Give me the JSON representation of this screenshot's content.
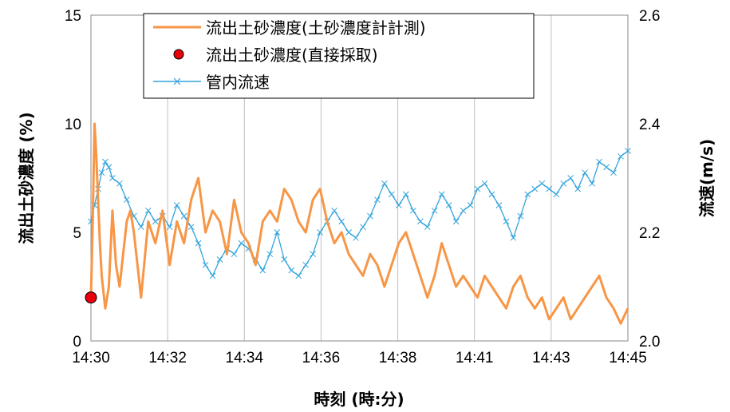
{
  "chart_data": {
    "type": "line",
    "xlabel": "時刻 (時:分)",
    "ylabel_left": "流出土砂濃度 (%)",
    "ylabel_right": "流速(m/s)",
    "x_categories": [
      "14:30",
      "14:32",
      "14:34",
      "14:36",
      "14:38",
      "14:41",
      "14:43",
      "14:45"
    ],
    "ylim_left": [
      0,
      15
    ],
    "yticks_left": [
      "0",
      "5",
      "10",
      "15"
    ],
    "ylim_right": [
      2.0,
      2.6
    ],
    "yticks_right": [
      "2.0",
      "2.2",
      "2.4",
      "2.6"
    ],
    "grid": "vertical",
    "legend_position": "top",
    "series": [
      {
        "name": "流出土砂濃度(土砂濃度計計測)",
        "axis": "left",
        "color": "#F79646",
        "marker": "none",
        "x": [
          0,
          0.05,
          0.1,
          0.15,
          0.2,
          0.25,
          0.3,
          0.4,
          0.5,
          0.6,
          0.7,
          0.8,
          0.9,
          1.0,
          1.1,
          1.2,
          1.3,
          1.4,
          1.6,
          1.8,
          2.0,
          2.2,
          2.4,
          2.6,
          2.8,
          3.0,
          3.2,
          3.4,
          3.6,
          3.8,
          4.0,
          4.2,
          4.4,
          4.6,
          4.8,
          5.0,
          5.2,
          5.4,
          5.6,
          5.8,
          6.0,
          6.2,
          6.4,
          6.6,
          6.8,
          7.0,
          7.2,
          7.4,
          7.6,
          7.8,
          8.0,
          8.2,
          8.4,
          8.6,
          8.8,
          9.0,
          9.2,
          9.4,
          9.6,
          9.8,
          10.0,
          10.2,
          10.4,
          10.6,
          10.8,
          11.0,
          11.2,
          11.4,
          11.6,
          11.8,
          12.0,
          12.2,
          12.4,
          12.6,
          12.8,
          13.0,
          13.2,
          13.4,
          13.6,
          13.8,
          14.0,
          14.2,
          14.4,
          14.6,
          14.8,
          15.0
        ],
        "y": [
          2.0,
          5.5,
          10.0,
          8.5,
          6.5,
          4.5,
          3.0,
          1.5,
          2.5,
          6.0,
          3.5,
          2.5,
          4.0,
          5.5,
          6.0,
          5.0,
          3.5,
          2.0,
          5.5,
          4.5,
          6.0,
          3.5,
          5.5,
          4.5,
          6.5,
          7.5,
          5.0,
          6.0,
          5.5,
          4.0,
          6.5,
          5.0,
          4.5,
          3.5,
          5.5,
          6.0,
          5.5,
          7.0,
          6.5,
          5.5,
          5.0,
          6.5,
          7.0,
          5.5,
          4.5,
          5.0,
          4.0,
          3.5,
          3.0,
          4.0,
          3.5,
          2.5,
          3.5,
          4.5,
          5.0,
          4.0,
          3.0,
          2.0,
          3.0,
          4.5,
          3.5,
          2.5,
          3.0,
          2.5,
          2.0,
          3.0,
          2.5,
          2.0,
          1.5,
          2.5,
          3.0,
          2.0,
          1.5,
          2.0,
          1.0,
          1.5,
          2.0,
          1.0,
          1.5,
          2.0,
          2.5,
          3.0,
          2.0,
          1.5,
          0.8,
          1.5
        ]
      },
      {
        "name": "流出土砂濃度(直接採取)",
        "axis": "left",
        "color": "#E8000B",
        "marker": "circle",
        "x": [
          0
        ],
        "y": [
          2.0
        ]
      },
      {
        "name": "管内流速",
        "axis": "right",
        "color": "#33A3DC",
        "marker": "x",
        "x": [
          0,
          0.1,
          0.2,
          0.3,
          0.4,
          0.5,
          0.6,
          0.8,
          1.0,
          1.2,
          1.4,
          1.6,
          1.8,
          2.0,
          2.2,
          2.4,
          2.6,
          2.8,
          3.0,
          3.2,
          3.4,
          3.6,
          3.8,
          4.0,
          4.2,
          4.4,
          4.6,
          4.8,
          5.0,
          5.2,
          5.4,
          5.6,
          5.8,
          6.0,
          6.2,
          6.4,
          6.6,
          6.8,
          7.0,
          7.2,
          7.4,
          7.6,
          7.8,
          8.0,
          8.2,
          8.4,
          8.6,
          8.8,
          9.0,
          9.2,
          9.4,
          9.6,
          9.8,
          10.0,
          10.2,
          10.4,
          10.6,
          10.8,
          11.0,
          11.2,
          11.4,
          11.6,
          11.8,
          12.0,
          12.2,
          12.4,
          12.6,
          12.8,
          13.0,
          13.2,
          13.4,
          13.6,
          13.8,
          14.0,
          14.2,
          14.4,
          14.6,
          14.8,
          15.0
        ],
        "y": [
          2.22,
          2.25,
          2.28,
          2.31,
          2.33,
          2.32,
          2.3,
          2.29,
          2.26,
          2.23,
          2.21,
          2.24,
          2.22,
          2.23,
          2.21,
          2.25,
          2.23,
          2.21,
          2.18,
          2.14,
          2.12,
          2.15,
          2.17,
          2.16,
          2.18,
          2.17,
          2.15,
          2.13,
          2.16,
          2.2,
          2.15,
          2.13,
          2.12,
          2.14,
          2.16,
          2.2,
          2.22,
          2.24,
          2.22,
          2.2,
          2.19,
          2.21,
          2.23,
          2.26,
          2.29,
          2.27,
          2.25,
          2.27,
          2.24,
          2.22,
          2.21,
          2.24,
          2.27,
          2.25,
          2.22,
          2.24,
          2.25,
          2.28,
          2.29,
          2.27,
          2.25,
          2.22,
          2.19,
          2.23,
          2.27,
          2.28,
          2.29,
          2.28,
          2.27,
          2.29,
          2.3,
          2.28,
          2.31,
          2.29,
          2.33,
          2.32,
          2.31,
          2.34,
          2.35
        ]
      }
    ]
  }
}
